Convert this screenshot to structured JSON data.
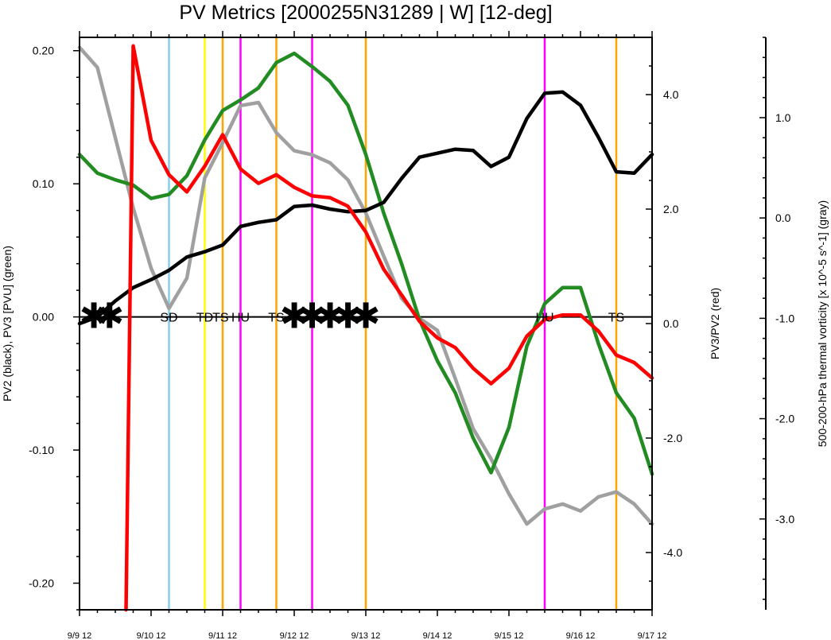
{
  "chart_data": {
    "type": "line",
    "title": "PV Metrics [2000255N31289 | W] [12-deg]",
    "left_axis_label": "PV2 (black), PV3 [PVU] (green)",
    "right_axis_label": "PV3/PV2 (red)",
    "far_right_axis_label": "500-200-hPa thermal vorticity [x 10^-5 s^-1] (gray)",
    "x_tick_labels": [
      "9/9 12",
      "9/10 12",
      "9/11 12",
      "9/12 12",
      "9/13 12",
      "9/14 12",
      "9/15 12",
      "9/16 12",
      "9/17 12"
    ],
    "left_ylim": [
      -0.22,
      0.21
    ],
    "right_ylim": [
      -5.0,
      5.0
    ],
    "far_right_ylim": [
      -3.905,
      1.8
    ],
    "left_ticks": [
      "0.20",
      "0.10",
      "0.00",
      "-0.10",
      "-0.20"
    ],
    "left_tick_values": [
      0.2,
      0.1,
      0.0,
      -0.1,
      -0.2
    ],
    "right_ticks": [
      "4.0",
      "2.0",
      "0.0",
      "-2.0",
      "-4.0"
    ],
    "right_tick_values": [
      4.0,
      2.0,
      0.0,
      -2.0,
      -4.0
    ],
    "far_right_ticks": [
      "1.0",
      "0.0",
      "-1.0",
      "-2.0",
      "-3.0"
    ],
    "far_right_tick_values": [
      1.0,
      0.0,
      -1.0,
      -2.0,
      -3.0
    ],
    "x": [
      0,
      0.25,
      0.5,
      0.75,
      1,
      1.25,
      1.5,
      1.75,
      2,
      2.25,
      2.5,
      2.75,
      3,
      3.25,
      3.5,
      3.75,
      4,
      4.25,
      4.5,
      4.75,
      5,
      5.25,
      5.5,
      5.75,
      6,
      6.25,
      6.5,
      6.75,
      7,
      7.25,
      7.5,
      7.75,
      8
    ],
    "series": [
      {
        "name": "PV2",
        "color": "#000000",
        "axis": "left",
        "values": [
          -0.005,
          0.0,
          0.012,
          0.022,
          0.028,
          0.035,
          0.045,
          0.049,
          0.054,
          0.068,
          0.071,
          0.073,
          0.083,
          0.084,
          0.081,
          0.079,
          0.08,
          0.086,
          0.104,
          0.12,
          0.123,
          0.126,
          0.125,
          0.113,
          0.12,
          0.149,
          0.168,
          0.169,
          0.159,
          0.135,
          0.109,
          0.108,
          0.122
        ]
      },
      {
        "name": "PV3",
        "color": "#228b22",
        "axis": "left",
        "values": [
          0.122,
          0.108,
          0.103,
          0.099,
          0.089,
          0.092,
          0.106,
          0.133,
          0.155,
          0.163,
          0.172,
          0.191,
          0.198,
          0.188,
          0.177,
          0.159,
          0.122,
          0.078,
          0.04,
          -0.002,
          -0.033,
          -0.057,
          -0.091,
          -0.117,
          -0.083,
          -0.022,
          0.01,
          0.022,
          0.022,
          -0.02,
          -0.057,
          -0.076,
          -0.118
        ]
      },
      {
        "name": "PV3/PV2",
        "color": "#ff0000",
        "axis": "right",
        "x": [
          0.65,
          0.75,
          1,
          1.25,
          1.5,
          1.75,
          2,
          2.25,
          2.5,
          2.75,
          3,
          3.25,
          3.5,
          3.75,
          4,
          4.25,
          4.5,
          4.75,
          5,
          5.25,
          5.5,
          5.75,
          6,
          6.25,
          6.5,
          6.75,
          7,
          7.25,
          7.5,
          7.75,
          8
        ],
        "values": [
          -5.0,
          4.85,
          3.2,
          2.6,
          2.3,
          2.75,
          3.3,
          2.7,
          2.45,
          2.6,
          2.38,
          2.23,
          2.2,
          2.05,
          1.6,
          0.95,
          0.5,
          0.04,
          -0.25,
          -0.42,
          -0.78,
          -1.05,
          -0.78,
          -0.22,
          0.07,
          0.15,
          0.15,
          -0.13,
          -0.55,
          -0.68,
          -0.95
        ]
      },
      {
        "name": "Thermal vorticity",
        "color": "#a0a0a0",
        "axis": "far_right",
        "values": [
          1.7,
          1.5,
          0.8,
          0.1,
          -0.5,
          -0.9,
          -0.6,
          0.4,
          0.75,
          1.12,
          1.15,
          0.85,
          0.67,
          0.63,
          0.55,
          0.38,
          0.05,
          -0.38,
          -0.8,
          -1.0,
          -1.12,
          -1.6,
          -2.1,
          -2.4,
          -2.75,
          -3.05,
          -2.9,
          -2.85,
          -2.92,
          -2.78,
          -2.73,
          -2.85,
          -3.05
        ]
      }
    ],
    "stage_lines": [
      {
        "x": 1.25,
        "color": "#87ceeb"
      },
      {
        "x": 1.75,
        "color": "#ffff00"
      },
      {
        "x": 2.0,
        "color": "#ffa500"
      },
      {
        "x": 2.25,
        "color": "#ff00ff"
      },
      {
        "x": 2.75,
        "color": "#ffa500"
      },
      {
        "x": 3.25,
        "color": "#ff00ff"
      },
      {
        "x": 4.0,
        "color": "#ffa500"
      },
      {
        "x": 6.5,
        "color": "#ff00ff"
      },
      {
        "x": 7.5,
        "color": "#ffa500"
      }
    ],
    "stage_labels": [
      {
        "x": 1.25,
        "text": "SD"
      },
      {
        "x": 1.75,
        "text": "TD"
      },
      {
        "x": 1.97,
        "text": "TS"
      },
      {
        "x": 2.25,
        "text": "HU"
      },
      {
        "x": 2.75,
        "text": "TS"
      },
      {
        "x": 6.5,
        "text": "HU"
      },
      {
        "x": 7.5,
        "text": "TS"
      }
    ],
    "asterisks_x": [
      0.2,
      0.42,
      3.0,
      3.25,
      3.5,
      3.75,
      4.0
    ],
    "asterisk_glyph": "✱"
  }
}
